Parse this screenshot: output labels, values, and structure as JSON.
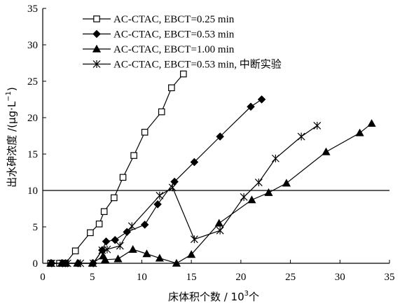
{
  "chart_data": {
    "type": "line",
    "xlabel_main": "床体积个数 / 10",
    "xlabel_sup": "3",
    "xlabel_tail": "个",
    "ylabel_main": "出水砷浓度 /(μg·L",
    "ylabel_sup": "−1",
    "ylabel_tail": ")",
    "xlim": [
      0,
      35
    ],
    "ylim": [
      0,
      35
    ],
    "xticks": [
      0,
      5,
      10,
      15,
      20,
      25,
      30,
      35
    ],
    "yticks": [
      0,
      5,
      10,
      15,
      20,
      25,
      30,
      35
    ],
    "reference_line": {
      "y": 10
    },
    "legend_position": "top-left",
    "series": [
      {
        "name": "AC-CTAC, EBCT=0.25 min",
        "marker": "open-square",
        "color": "#000000",
        "points": [
          [
            0.8,
            0
          ],
          [
            1.7,
            0
          ],
          [
            2.3,
            0
          ],
          [
            3.3,
            1.7
          ],
          [
            4.8,
            4.2
          ],
          [
            5.7,
            5.4
          ],
          [
            6.2,
            7.1
          ],
          [
            7.2,
            9.0
          ],
          [
            8.1,
            11.8
          ],
          [
            9.2,
            14.8
          ],
          [
            10.3,
            18.0
          ],
          [
            12.0,
            20.8
          ],
          [
            13.0,
            24.1
          ],
          [
            14.2,
            26.0
          ]
        ]
      },
      {
        "name": "AC-CTAC, EBCT=0.53 min",
        "marker": "filled-diamond",
        "color": "#000000",
        "points": [
          [
            0.9,
            0
          ],
          [
            2.0,
            0
          ],
          [
            2.3,
            0
          ],
          [
            3.6,
            0
          ],
          [
            5.1,
            0
          ],
          [
            6.0,
            1.8
          ],
          [
            6.4,
            3.0
          ],
          [
            7.3,
            3.2
          ],
          [
            8.5,
            4.3
          ],
          [
            10.3,
            5.3
          ],
          [
            11.6,
            8.1
          ],
          [
            13.3,
            11.2
          ],
          [
            15.3,
            13.9
          ],
          [
            17.9,
            17.4
          ],
          [
            21.0,
            21.5
          ],
          [
            22.1,
            22.5
          ]
        ]
      },
      {
        "name": "AC-CTAC, EBCT=1.00 min",
        "marker": "filled-triangle",
        "color": "#000000",
        "points": [
          [
            0.8,
            0
          ],
          [
            1.9,
            0
          ],
          [
            2.3,
            0
          ],
          [
            3.5,
            0
          ],
          [
            5.0,
            0
          ],
          [
            6.1,
            1.0
          ],
          [
            6.3,
            0.5
          ],
          [
            7.6,
            0.6
          ],
          [
            9.1,
            1.9
          ],
          [
            10.5,
            1.3
          ],
          [
            11.8,
            0.7
          ],
          [
            13.5,
            0
          ],
          [
            15.0,
            1.2
          ],
          [
            17.8,
            5.5
          ],
          [
            21.1,
            8.7
          ],
          [
            22.8,
            9.7
          ],
          [
            24.6,
            11.0
          ],
          [
            28.6,
            15.3
          ],
          [
            32.0,
            17.9
          ],
          [
            33.2,
            19.2
          ]
        ]
      },
      {
        "name": "AC-CTAC, EBCT=0.53 min, 中断实验",
        "marker": "asterisk",
        "color": "#000000",
        "points": [
          [
            0.9,
            0
          ],
          [
            2.0,
            0
          ],
          [
            2.5,
            0
          ],
          [
            3.8,
            0
          ],
          [
            5.1,
            0
          ],
          [
            6.0,
            1.8
          ],
          [
            6.5,
            1.9
          ],
          [
            7.8,
            2.4
          ],
          [
            9.0,
            5.1
          ],
          [
            11.8,
            9.3
          ],
          [
            13.1,
            10.4
          ],
          [
            15.3,
            3.3
          ],
          [
            17.9,
            4.5
          ],
          [
            20.3,
            9.1
          ],
          [
            21.8,
            11.1
          ],
          [
            23.5,
            14.4
          ],
          [
            26.1,
            17.4
          ],
          [
            27.7,
            18.9
          ]
        ]
      }
    ]
  }
}
